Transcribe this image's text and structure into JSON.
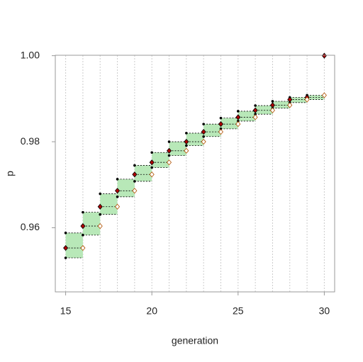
{
  "chart_data": {
    "type": "step-interval",
    "x_label": "generation",
    "y_label": "p",
    "xlim": [
      14.4,
      30.6
    ],
    "xticks": [
      15,
      20,
      25,
      30
    ],
    "ylim": [
      0.9451,
      1.0001
    ],
    "yticks": [
      0.96,
      0.98,
      {
        "value": 1,
        "label": "1.00"
      }
    ],
    "box_color": "#b8e8b8",
    "series": [
      {
        "marker": "dot",
        "color": "#000000",
        "x": [
          15,
          16,
          17,
          18,
          19,
          20,
          21,
          22,
          23,
          24,
          25,
          26,
          27,
          28,
          29
        ],
        "values": [
          0.9588,
          0.9636,
          0.9679,
          0.9713,
          0.9745,
          0.9775,
          0.98,
          0.982,
          0.9841,
          0.9855,
          0.9871,
          0.9884,
          0.9894,
          0.9903,
          0.9908
        ]
      },
      {
        "marker": "diamond",
        "color": "#b00000",
        "x": [
          15,
          16,
          17,
          18,
          19,
          20,
          21,
          22,
          23,
          24,
          25,
          26,
          27,
          28,
          29,
          30
        ],
        "values": [
          0.9553,
          0.9604,
          0.9649,
          0.9686,
          0.9724,
          0.9752,
          0.9779,
          0.98,
          0.9823,
          0.9841,
          0.9857,
          0.9873,
          0.9885,
          0.9898,
          0.9903,
          1.0
        ]
      },
      {
        "marker": "dot",
        "color": "#000000",
        "x": [
          15,
          16,
          17,
          18,
          19,
          20,
          21,
          22,
          23,
          24,
          25,
          26,
          27,
          28,
          29
        ],
        "values": [
          0.953,
          0.9583,
          0.9631,
          0.9672,
          0.9708,
          0.974,
          0.9768,
          0.9791,
          0.9812,
          0.983,
          0.9848,
          0.9864,
          0.9878,
          0.9891,
          0.9898
        ]
      },
      {
        "marker": "open-diamond",
        "color": "#b05000",
        "x": [
          16,
          17,
          18,
          19,
          20,
          21,
          22,
          23,
          24,
          25,
          26,
          27,
          28,
          29,
          30
        ],
        "values": [
          0.9553,
          0.9604,
          0.9649,
          0.9686,
          0.9724,
          0.9752,
          0.9779,
          0.98,
          0.9823,
          0.9841,
          0.9857,
          0.9873,
          0.9885,
          0.9898,
          0.9908
        ]
      }
    ]
  }
}
